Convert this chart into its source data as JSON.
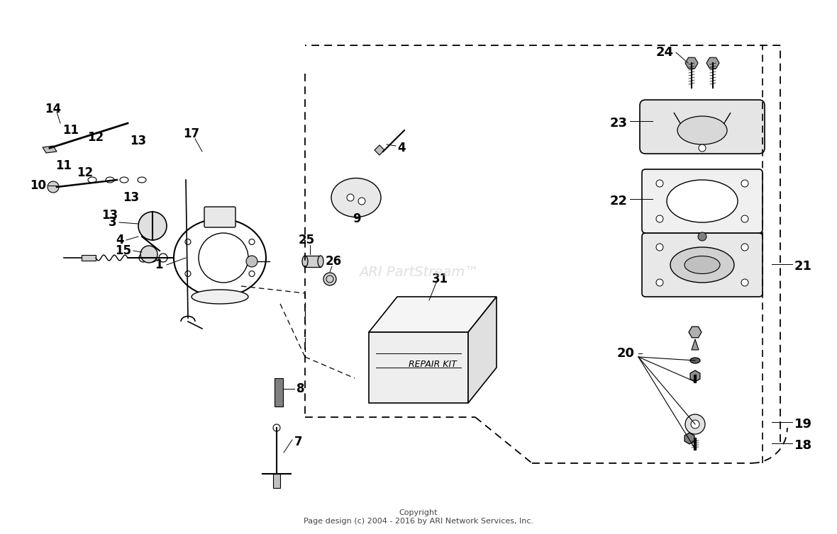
{
  "title": "",
  "bg_color": "#ffffff",
  "text_color": "#000000",
  "line_color": "#000000",
  "copyright_line1": "Copyright",
  "copyright_line2": "Page design (c) 2004 - 2016 by ARI Network Services, Inc.",
  "watermark": "ARI PartStream™",
  "part_numbers": [
    1,
    3,
    4,
    7,
    8,
    9,
    10,
    11,
    12,
    13,
    14,
    15,
    17,
    18,
    19,
    20,
    21,
    22,
    23,
    24,
    25,
    26,
    31
  ],
  "repair_kit_label": "REPAIR KIT"
}
